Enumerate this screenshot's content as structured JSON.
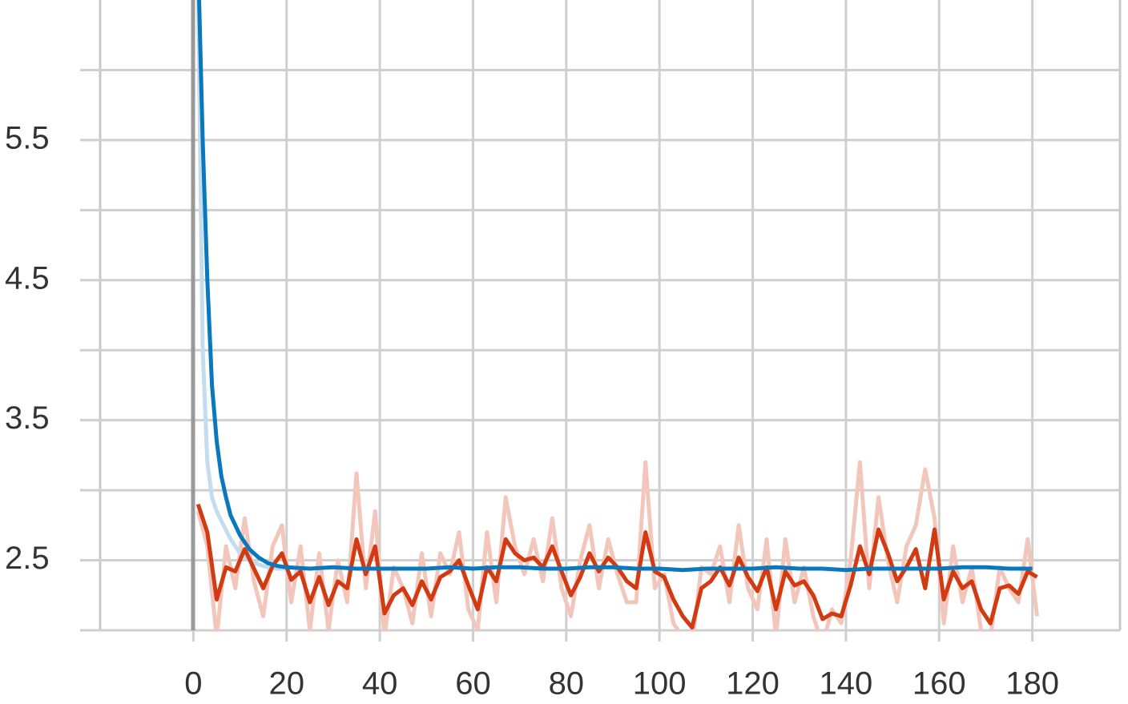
{
  "chart_data": {
    "type": "line",
    "xlim": [
      -20,
      200
    ],
    "xticks": [
      0,
      20,
      40,
      60,
      80,
      100,
      120,
      140,
      160,
      180
    ],
    "ylim": [
      2.0,
      6.5
    ],
    "yticks": [
      2.5,
      3.5,
      4.5,
      5.5
    ],
    "y_minor_ticks": [
      2,
      3,
      4,
      5,
      6
    ],
    "grid": true,
    "series": [
      {
        "color": "#f3c6bc",
        "x": [
          1,
          3,
          5,
          7,
          9,
          11,
          13,
          15,
          17,
          19,
          21,
          23,
          25,
          27,
          29,
          31,
          33,
          35,
          37,
          39,
          41,
          43,
          45,
          47,
          49,
          51,
          53,
          55,
          57,
          59,
          61,
          63,
          65,
          67,
          69,
          71,
          73,
          75,
          77,
          79,
          81,
          83,
          85,
          87,
          89,
          91,
          93,
          95,
          97,
          99,
          101,
          103,
          105,
          107,
          109,
          111,
          113,
          115,
          117,
          119,
          121,
          123,
          125,
          127,
          129,
          131,
          133,
          135,
          137,
          139,
          141,
          143,
          145,
          147,
          149,
          151,
          153,
          155,
          157,
          159,
          161,
          163,
          165,
          167,
          169,
          171,
          173,
          175,
          177,
          179,
          181
        ],
        "values": [
          2.85,
          2.6,
          1.95,
          2.6,
          2.3,
          2.8,
          2.35,
          2.1,
          2.6,
          2.75,
          2.2,
          2.6,
          2.0,
          2.55,
          2.0,
          2.5,
          2.2,
          3.12,
          2.3,
          2.85,
          1.95,
          2.45,
          2.3,
          2.05,
          2.55,
          2.1,
          2.55,
          2.4,
          2.7,
          2.15,
          2.0,
          2.7,
          2.2,
          2.95,
          2.6,
          2.4,
          2.65,
          2.35,
          2.8,
          2.3,
          2.1,
          2.5,
          2.75,
          2.3,
          2.65,
          2.4,
          2.2,
          2.2,
          3.2,
          2.3,
          2.4,
          2.05,
          1.95,
          1.9,
          2.45,
          2.4,
          2.6,
          2.2,
          2.75,
          2.3,
          2.15,
          2.65,
          1.95,
          2.65,
          2.2,
          2.45,
          2.1,
          1.9,
          2.15,
          2.05,
          2.5,
          3.2,
          2.3,
          2.95,
          2.5,
          2.2,
          2.6,
          2.75,
          3.15,
          2.8,
          2.05,
          2.6,
          2.2,
          2.45,
          2.0,
          1.95,
          2.45,
          2.3,
          2.2,
          2.65,
          2.1
        ]
      },
      {
        "color": "#c3dcee",
        "x": [
          1,
          2,
          3,
          4,
          5,
          6,
          8,
          10,
          12,
          14,
          16,
          18,
          20
        ],
        "values": [
          6.6,
          4.0,
          3.2,
          2.95,
          2.85,
          2.78,
          2.65,
          2.55,
          2.5,
          2.47,
          2.45,
          2.44,
          2.44
        ]
      },
      {
        "color": "#d23a12",
        "x": [
          1,
          3,
          5,
          7,
          9,
          11,
          13,
          15,
          17,
          19,
          21,
          23,
          25,
          27,
          29,
          31,
          33,
          35,
          37,
          39,
          41,
          43,
          45,
          47,
          49,
          51,
          53,
          55,
          57,
          59,
          61,
          63,
          65,
          67,
          69,
          71,
          73,
          75,
          77,
          79,
          81,
          83,
          85,
          87,
          89,
          91,
          93,
          95,
          97,
          99,
          101,
          103,
          105,
          107,
          109,
          111,
          113,
          115,
          117,
          119,
          121,
          123,
          125,
          127,
          129,
          131,
          133,
          135,
          137,
          139,
          141,
          143,
          145,
          147,
          149,
          151,
          153,
          155,
          157,
          159,
          161,
          163,
          165,
          167,
          169,
          171,
          173,
          175,
          177,
          179,
          181
        ],
        "values": [
          2.9,
          2.7,
          2.22,
          2.45,
          2.42,
          2.58,
          2.44,
          2.3,
          2.46,
          2.55,
          2.36,
          2.42,
          2.2,
          2.38,
          2.18,
          2.35,
          2.3,
          2.65,
          2.4,
          2.6,
          2.12,
          2.25,
          2.3,
          2.18,
          2.35,
          2.22,
          2.38,
          2.42,
          2.5,
          2.32,
          2.15,
          2.45,
          2.35,
          2.65,
          2.55,
          2.5,
          2.52,
          2.45,
          2.6,
          2.42,
          2.25,
          2.38,
          2.55,
          2.42,
          2.52,
          2.45,
          2.35,
          2.3,
          2.7,
          2.42,
          2.38,
          2.22,
          2.1,
          2.02,
          2.3,
          2.35,
          2.45,
          2.32,
          2.52,
          2.38,
          2.28,
          2.45,
          2.15,
          2.42,
          2.32,
          2.35,
          2.25,
          2.08,
          2.12,
          2.1,
          2.32,
          2.6,
          2.4,
          2.72,
          2.55,
          2.35,
          2.45,
          2.58,
          2.3,
          2.72,
          2.22,
          2.42,
          2.3,
          2.35,
          2.15,
          2.05,
          2.3,
          2.32,
          2.26,
          2.42,
          2.38
        ]
      },
      {
        "color": "#0a78bd",
        "x": [
          1,
          2,
          3,
          4,
          5,
          6,
          7,
          8,
          10,
          12,
          14,
          16,
          18,
          20,
          25,
          30,
          35,
          40,
          45,
          50,
          55,
          60,
          65,
          70,
          75,
          80,
          85,
          90,
          95,
          100,
          105,
          110,
          115,
          120,
          125,
          130,
          135,
          140,
          145,
          150,
          155,
          160,
          165,
          170,
          175,
          180
        ],
        "values": [
          6.8,
          5.5,
          4.5,
          3.75,
          3.35,
          3.1,
          2.95,
          2.82,
          2.68,
          2.58,
          2.52,
          2.48,
          2.46,
          2.45,
          2.44,
          2.45,
          2.44,
          2.44,
          2.44,
          2.44,
          2.45,
          2.44,
          2.45,
          2.45,
          2.44,
          2.44,
          2.45,
          2.45,
          2.44,
          2.44,
          2.43,
          2.44,
          2.44,
          2.44,
          2.45,
          2.44,
          2.44,
          2.43,
          2.44,
          2.44,
          2.44,
          2.44,
          2.45,
          2.45,
          2.44,
          2.44
        ]
      }
    ]
  }
}
